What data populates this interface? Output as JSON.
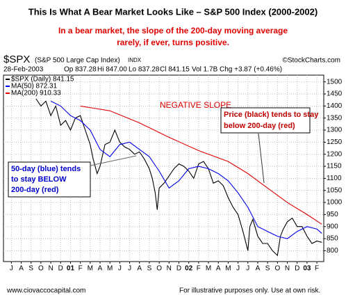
{
  "chart_data": {
    "type": "line",
    "title": "This Is What A Bear Market Looks Like – S&P 500 Index (2000-2002)",
    "subtitle": [
      "In a bear market, the slope of the 200-day moving average",
      "rarely, if ever, turns positive."
    ],
    "symbol": "$SPX",
    "symbol_desc": "(S&P 500 Large Cap Index)",
    "exchange": "INDX",
    "credit": "©StockCharts.com",
    "date": "28-Feb-2003",
    "quote": [
      "Op 837.28",
      "Hi 847.00",
      "Lo 837.28",
      "Cl 841.15",
      "Vol 1.7B",
      "Chg +3.87 (+0.46%)"
    ],
    "annotations": {
      "negative_slope": "NEGATIVE SLOPE",
      "price_note": [
        "Price (black) tends to stay",
        "below 200-day (red)"
      ],
      "ma_note": [
        "50-day (blue) tends",
        "to stay BELOW",
        "200-day (red)"
      ]
    },
    "footer_left": "www.ciovaccocapital.com",
    "footer_right": "For illustrative purposes only.  Use at own risk.",
    "xlim": [
      -0.8,
      31.7
    ],
    "xticks": [
      {
        "value": 0,
        "label": "J"
      },
      {
        "value": 1,
        "label": "A"
      },
      {
        "value": 2,
        "label": "S"
      },
      {
        "value": 3,
        "label": "O"
      },
      {
        "value": 4,
        "label": "N"
      },
      {
        "value": 5,
        "label": "D"
      },
      {
        "value": 6,
        "label": "01"
      },
      {
        "value": 7,
        "label": "F"
      },
      {
        "value": 8,
        "label": "M"
      },
      {
        "value": 9,
        "label": "A"
      },
      {
        "value": 10,
        "label": "M"
      },
      {
        "value": 11,
        "label": "J"
      },
      {
        "value": 12,
        "label": "J"
      },
      {
        "value": 13,
        "label": "A"
      },
      {
        "value": 14,
        "label": "S"
      },
      {
        "value": 15,
        "label": "O"
      },
      {
        "value": 16,
        "label": "N"
      },
      {
        "value": 17,
        "label": "D"
      },
      {
        "value": 18,
        "label": "02"
      },
      {
        "value": 19,
        "label": "F"
      },
      {
        "value": 20,
        "label": "M"
      },
      {
        "value": 21,
        "label": "A"
      },
      {
        "value": 22,
        "label": "M"
      },
      {
        "value": 23,
        "label": "J"
      },
      {
        "value": 24,
        "label": "J"
      },
      {
        "value": 25,
        "label": "A"
      },
      {
        "value": 26,
        "label": "S"
      },
      {
        "value": 27,
        "label": "O"
      },
      {
        "value": 28,
        "label": "N"
      },
      {
        "value": 29,
        "label": "D"
      },
      {
        "value": 30,
        "label": "03"
      },
      {
        "value": 31,
        "label": "F"
      }
    ],
    "ylim": [
      755,
      1528
    ],
    "yticks": [
      800,
      850,
      900,
      950,
      1000,
      1050,
      1100,
      1150,
      1200,
      1250,
      1300,
      1350,
      1400,
      1450,
      1500
    ],
    "grid": true,
    "series": [
      {
        "name": "$SPX (Daily) 841.15",
        "color": "#000000",
        "x": [
          2.5,
          3,
          3.5,
          4,
          4.5,
          5,
          5.5,
          6,
          6.5,
          7,
          7.5,
          8,
          8.3,
          8.7,
          9,
          9.5,
          10,
          10.5,
          11,
          11.5,
          12,
          12.5,
          13,
          13.5,
          14,
          14.3,
          14.6,
          14.8,
          15,
          15.5,
          16,
          16.5,
          17,
          17.5,
          18,
          18.5,
          19,
          19.5,
          20,
          20.5,
          21,
          21.5,
          22,
          22.5,
          23,
          23.5,
          24,
          24.2,
          24.5,
          25,
          25.5,
          26,
          26.5,
          27,
          27.3,
          27.6,
          28,
          28.5,
          29,
          29.5,
          30,
          30.5,
          31,
          31.5
        ],
        "values": [
          1430,
          1400,
          1420,
          1360,
          1400,
          1320,
          1340,
          1300,
          1350,
          1360,
          1300,
          1240,
          1180,
          1120,
          1150,
          1240,
          1250,
          1300,
          1250,
          1230,
          1220,
          1200,
          1210,
          1180,
          1140,
          1100,
          1040,
          970,
          1060,
          1080,
          1110,
          1140,
          1160,
          1150,
          1130,
          1100,
          1160,
          1170,
          1140,
          1080,
          1090,
          1070,
          1020,
          980,
          950,
          880,
          800,
          900,
          930,
          860,
          830,
          830,
          800,
          780,
          860,
          890,
          920,
          935,
          900,
          900,
          860,
          830,
          840,
          835
        ]
      },
      {
        "name": "MA(50) 872.31",
        "color": "#0000ee",
        "x": [
          4,
          5,
          6,
          7,
          8,
          9,
          10,
          11,
          12,
          13,
          14,
          15,
          16,
          17,
          18,
          19,
          20,
          21,
          22,
          23,
          24,
          25,
          26,
          27,
          28,
          29,
          30,
          31,
          31.5
        ],
        "values": [
          1420,
          1400,
          1360,
          1340,
          1300,
          1220,
          1190,
          1240,
          1250,
          1220,
          1190,
          1130,
          1060,
          1090,
          1140,
          1150,
          1140,
          1120,
          1090,
          1040,
          980,
          900,
          880,
          860,
          850,
          880,
          900,
          890,
          872
        ]
      },
      {
        "name": "MA(200) 910.33",
        "color": "#e00000",
        "x": [
          7,
          10,
          13,
          16,
          19,
          22,
          24,
          26,
          28,
          30,
          31.5
        ],
        "values": [
          1400,
          1380,
          1330,
          1270,
          1215,
          1170,
          1120,
          1060,
          1000,
          950,
          910
        ]
      }
    ]
  }
}
